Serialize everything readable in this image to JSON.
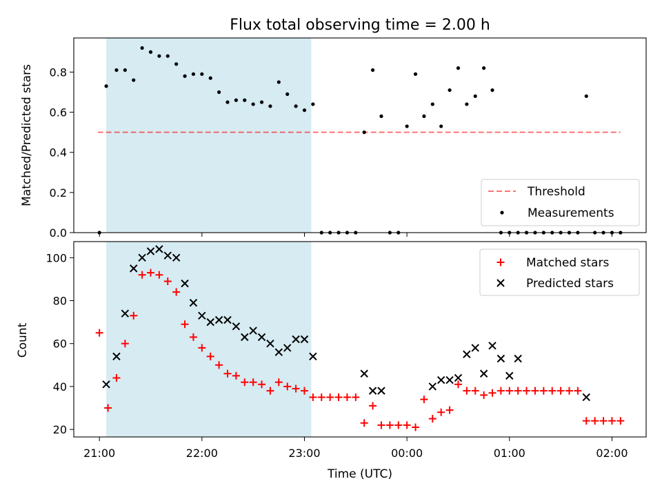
{
  "chart_data": [
    {
      "type": "scatter",
      "title": "Flux total observing time = 2.00 h",
      "xlabel": "",
      "ylabel": "Matched/Predicted stars",
      "xlim": [
        "20:45",
        "02:20"
      ],
      "ylim": [
        0,
        0.97
      ],
      "yticks": [
        0.0,
        0.2,
        0.4,
        0.6,
        0.8
      ],
      "ytick_labels": [
        "0.0",
        "0.2",
        "0.4",
        "0.6",
        "0.8"
      ],
      "shaded_span": [
        "21:04",
        "23:04"
      ],
      "threshold": {
        "name": "Threshold",
        "y": 0.5,
        "x_range": [
          "20:59",
          "02:05"
        ]
      },
      "legend": {
        "position": "lower-right",
        "entries": [
          "Threshold",
          "Measurements"
        ]
      },
      "series": [
        {
          "name": "Measurements",
          "x": [
            "21:00",
            "21:04",
            "21:10",
            "21:15",
            "21:20",
            "21:25",
            "21:30",
            "21:35",
            "21:40",
            "21:45",
            "21:50",
            "21:55",
            "22:00",
            "22:05",
            "22:10",
            "22:15",
            "22:20",
            "22:25",
            "22:30",
            "22:35",
            "22:40",
            "22:45",
            "22:50",
            "22:55",
            "23:00",
            "23:05",
            "23:10",
            "23:15",
            "23:20",
            "23:25",
            "23:30",
            "23:35",
            "23:40",
            "23:45",
            "23:50",
            "23:55",
            "00:00",
            "00:05",
            "00:10",
            "00:15",
            "00:20",
            "00:25",
            "00:30",
            "00:35",
            "00:40",
            "00:45",
            "00:50",
            "00:55",
            "01:00",
            "01:05",
            "01:10",
            "01:15",
            "01:20",
            "01:25",
            "01:30",
            "01:35",
            "01:40",
            "01:45",
            "01:50",
            "01:55",
            "02:00",
            "02:05"
          ],
          "y": [
            0.0,
            0.73,
            0.81,
            0.81,
            0.76,
            0.92,
            0.9,
            0.88,
            0.88,
            0.84,
            0.78,
            0.79,
            0.79,
            0.77,
            0.7,
            0.65,
            0.66,
            0.66,
            0.64,
            0.65,
            0.63,
            0.75,
            0.69,
            0.63,
            0.61,
            0.64,
            0.0,
            0.0,
            0.0,
            0.0,
            0.0,
            0.5,
            0.81,
            0.58,
            0.0,
            0.0,
            0.53,
            0.79,
            0.58,
            0.64,
            0.53,
            0.71,
            0.82,
            0.64,
            0.68,
            0.82,
            0.71,
            0.0,
            0.0,
            0.0,
            0.0,
            0.0,
            0.0,
            0.0,
            0.0,
            0.0,
            0.0,
            0.68,
            0.0,
            0.0,
            0.0,
            0.0
          ]
        }
      ]
    },
    {
      "type": "scatter",
      "title": "",
      "xlabel": "Time (UTC)",
      "ylabel": "Count",
      "xlim": [
        "20:45",
        "02:20"
      ],
      "ylim": [
        16.5,
        107.5
      ],
      "xticks": [
        "21:00",
        "22:00",
        "23:00",
        "00:00",
        "01:00",
        "02:00"
      ],
      "yticks": [
        20,
        40,
        60,
        80,
        100
      ],
      "ytick_labels": [
        "20",
        "40",
        "60",
        "80",
        "100"
      ],
      "shaded_span": [
        "21:04",
        "23:04"
      ],
      "legend": {
        "position": "upper-right",
        "entries": [
          "Matched stars",
          "Predicted stars"
        ]
      },
      "series": [
        {
          "name": "Matched stars",
          "color": "#ff0000",
          "x": [
            "21:00",
            "21:05",
            "21:10",
            "21:15",
            "21:20",
            "21:25",
            "21:30",
            "21:35",
            "21:40",
            "21:45",
            "21:50",
            "21:55",
            "22:00",
            "22:05",
            "22:10",
            "22:15",
            "22:20",
            "22:25",
            "22:30",
            "22:35",
            "22:40",
            "22:45",
            "22:50",
            "22:55",
            "23:00",
            "23:05",
            "23:10",
            "23:15",
            "23:20",
            "23:25",
            "23:30",
            "23:35",
            "23:40",
            "23:45",
            "23:50",
            "23:55",
            "00:00",
            "00:05",
            "00:10",
            "00:15",
            "00:20",
            "00:25",
            "00:30",
            "00:35",
            "00:40",
            "00:45",
            "00:50",
            "00:55",
            "01:00",
            "01:05",
            "01:10",
            "01:15",
            "01:20",
            "01:25",
            "01:30",
            "01:35",
            "01:40",
            "01:45",
            "01:50",
            "01:55",
            "02:00",
            "02:05"
          ],
          "y": [
            65,
            30,
            44,
            60,
            73,
            92,
            93,
            92,
            89,
            84,
            69,
            63,
            58,
            54,
            50,
            46,
            45,
            42,
            42,
            41,
            38,
            42,
            40,
            39,
            38,
            35,
            35,
            35,
            35,
            35,
            35,
            23,
            31,
            22,
            22,
            22,
            22,
            21,
            34,
            25,
            28,
            29,
            41,
            38,
            38,
            36,
            37,
            38,
            38,
            38,
            38,
            38,
            38,
            38,
            38,
            38,
            38,
            24,
            24,
            24,
            24,
            24
          ]
        },
        {
          "name": "Predicted stars",
          "color": "#000000",
          "x": [
            "21:04",
            "21:10",
            "21:15",
            "21:20",
            "21:25",
            "21:30",
            "21:35",
            "21:40",
            "21:45",
            "21:50",
            "21:55",
            "22:00",
            "22:05",
            "22:10",
            "22:15",
            "22:20",
            "22:25",
            "22:30",
            "22:35",
            "22:40",
            "22:45",
            "22:50",
            "22:55",
            "23:00",
            "23:05",
            "23:35",
            "23:40",
            "23:45",
            "00:15",
            "00:20",
            "00:25",
            "00:30",
            "00:35",
            "00:40",
            "00:45",
            "00:50",
            "00:55",
            "01:00",
            "01:05",
            "01:45"
          ],
          "y": [
            41,
            54,
            74,
            95,
            100,
            103,
            104,
            101,
            100,
            88,
            79,
            73,
            70,
            71,
            71,
            68,
            63,
            66,
            63,
            60,
            56,
            58,
            62,
            62,
            54,
            46,
            38,
            38,
            40,
            43,
            43,
            44,
            55,
            58,
            46,
            59,
            53,
            45,
            53,
            35
          ]
        }
      ]
    }
  ]
}
